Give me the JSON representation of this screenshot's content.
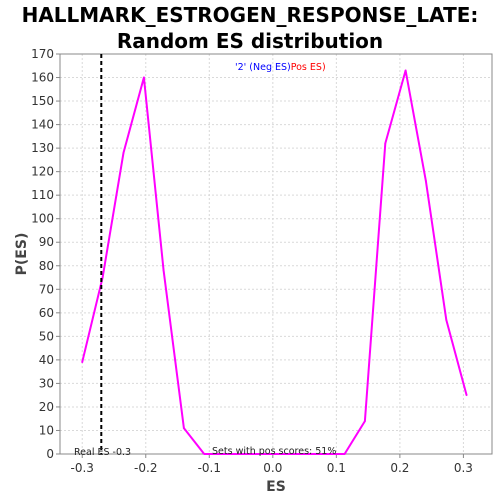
{
  "chart_data": {
    "type": "line",
    "title_line1": "HALLMARK_ESTROGEN_RESPONSE_LATE:",
    "title_line2": "Random ES distribution",
    "xlabel": "ES",
    "ylabel": "P(ES)",
    "xlim": [
      -0.335,
      0.345
    ],
    "ylim": [
      0,
      170
    ],
    "xticks": [
      -0.3,
      -0.2,
      -0.1,
      0.0,
      0.1,
      0.2,
      0.3
    ],
    "xtick_labels": [
      "-0.3",
      "-0.2",
      "-0.1",
      "0.0",
      "0.1",
      "0.2",
      "0.3"
    ],
    "yticks": [
      0,
      10,
      20,
      30,
      40,
      50,
      60,
      70,
      80,
      90,
      100,
      110,
      120,
      130,
      140,
      150,
      160,
      170
    ],
    "grid": true,
    "legend": {
      "placement": "top-center",
      "items": [
        {
          "text": "'2' (Neg ES)",
          "color": "#0000ff"
        },
        {
          "text": "Pos ES)",
          "color": "#ff0000"
        }
      ]
    },
    "series": [
      {
        "color": "#ff00ff",
        "x": [
          -0.3,
          -0.268,
          -0.235,
          -0.203,
          -0.172,
          -0.14,
          -0.108,
          -0.076,
          0.0,
          0.1,
          0.113,
          0.145,
          0.177,
          0.209,
          0.241,
          0.273,
          0.305
        ],
        "y": [
          39,
          75,
          128,
          160,
          78,
          11,
          0,
          0,
          0,
          0,
          0,
          14,
          132,
          163,
          116,
          57,
          25
        ]
      }
    ],
    "real_es": {
      "value": -0.27,
      "label": "Real ES -0.3",
      "color": "#000000"
    },
    "annotation": "Sets with pos scores: 51%"
  }
}
